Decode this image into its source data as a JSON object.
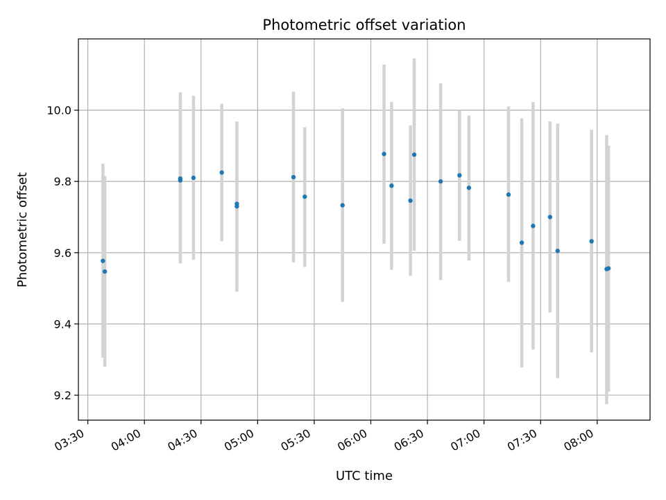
{
  "chart_data": {
    "type": "scatter",
    "title": "Photometric offset variation",
    "xlabel": "UTC time",
    "ylabel": "Photometric offset",
    "x_ticks": [
      "03:30",
      "04:00",
      "04:30",
      "05:00",
      "05:30",
      "06:00",
      "06:30",
      "07:00",
      "07:30",
      "08:00"
    ],
    "y_ticks": [
      "9.2",
      "9.4",
      "9.6",
      "9.8",
      "10.0"
    ],
    "xlim": [
      "03:25",
      "08:28"
    ],
    "ylim": [
      9.13,
      10.2
    ],
    "grid": true,
    "colors": {
      "marker": "#1f77b4",
      "errorbar": "#d3d3d3",
      "grid": "#b0b0b0"
    },
    "points": [
      {
        "x": "03:38",
        "y": 9.577,
        "ylo": 9.305,
        "yhi": 9.85
      },
      {
        "x": "03:39",
        "y": 9.547,
        "ylo": 9.28,
        "yhi": 9.815
      },
      {
        "x": "04:19",
        "y": 9.808,
        "ylo": 9.57,
        "yhi": 10.05
      },
      {
        "x": "04:19",
        "y": 9.803,
        "ylo": 9.575,
        "yhi": 10.03
      },
      {
        "x": "04:26",
        "y": 9.81,
        "ylo": 9.58,
        "yhi": 10.04
      },
      {
        "x": "04:41",
        "y": 9.825,
        "ylo": 9.632,
        "yhi": 10.018
      },
      {
        "x": "04:49",
        "y": 9.737,
        "ylo": 9.505,
        "yhi": 9.968
      },
      {
        "x": "04:49",
        "y": 9.73,
        "ylo": 9.49,
        "yhi": 9.965
      },
      {
        "x": "05:19",
        "y": 9.812,
        "ylo": 9.573,
        "yhi": 10.052
      },
      {
        "x": "05:25",
        "y": 9.757,
        "ylo": 9.56,
        "yhi": 9.952
      },
      {
        "x": "05:45",
        "y": 9.733,
        "ylo": 9.462,
        "yhi": 10.005
      },
      {
        "x": "06:07",
        "y": 9.877,
        "ylo": 9.625,
        "yhi": 10.128
      },
      {
        "x": "06:11",
        "y": 9.788,
        "ylo": 9.552,
        "yhi": 10.023
      },
      {
        "x": "06:21",
        "y": 9.746,
        "ylo": 9.535,
        "yhi": 9.957
      },
      {
        "x": "06:23",
        "y": 9.875,
        "ylo": 9.605,
        "yhi": 10.145
      },
      {
        "x": "06:37",
        "y": 9.8,
        "ylo": 9.523,
        "yhi": 10.075
      },
      {
        "x": "06:47",
        "y": 9.817,
        "ylo": 9.633,
        "yhi": 10.0
      },
      {
        "x": "06:52",
        "y": 9.782,
        "ylo": 9.578,
        "yhi": 9.985
      },
      {
        "x": "07:13",
        "y": 9.763,
        "ylo": 9.518,
        "yhi": 10.01
      },
      {
        "x": "07:20",
        "y": 9.628,
        "ylo": 9.278,
        "yhi": 9.977
      },
      {
        "x": "07:26",
        "y": 9.675,
        "ylo": 9.328,
        "yhi": 10.023
      },
      {
        "x": "07:35",
        "y": 9.7,
        "ylo": 9.432,
        "yhi": 9.968
      },
      {
        "x": "07:39",
        "y": 9.605,
        "ylo": 9.248,
        "yhi": 9.962
      },
      {
        "x": "07:57",
        "y": 9.632,
        "ylo": 9.32,
        "yhi": 9.945
      },
      {
        "x": "08:05",
        "y": 9.554,
        "ylo": 9.175,
        "yhi": 9.93
      },
      {
        "x": "08:06",
        "y": 9.556,
        "ylo": 9.21,
        "yhi": 9.9
      }
    ]
  }
}
